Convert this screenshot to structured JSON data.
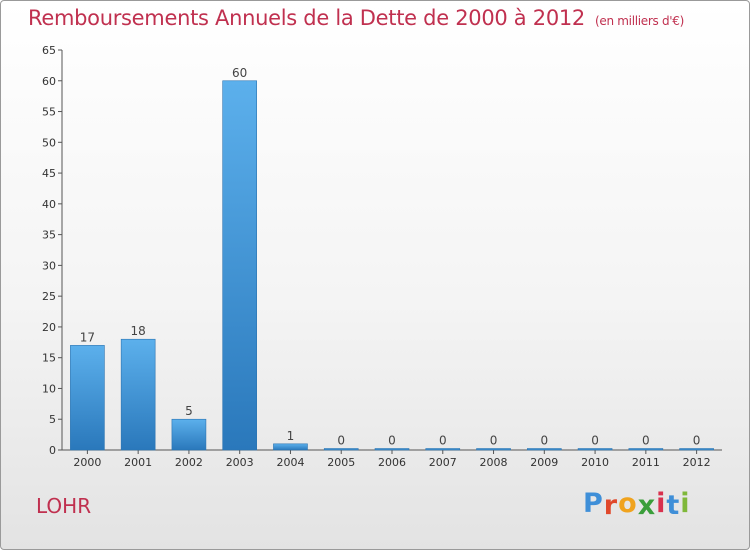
{
  "chart_data": {
    "type": "bar",
    "title": "Remboursements Annuels de la Dette de 2000 à 2012",
    "subtitle": "(en milliers d'€)",
    "categories": [
      "2000",
      "2001",
      "2002",
      "2003",
      "2004",
      "2005",
      "2006",
      "2007",
      "2008",
      "2009",
      "2010",
      "2011",
      "2012"
    ],
    "values": [
      17,
      18,
      5,
      60,
      1,
      0,
      0,
      0,
      0,
      0,
      0,
      0,
      0
    ],
    "yticks": [
      0,
      5,
      10,
      15,
      20,
      25,
      30,
      35,
      40,
      45,
      50,
      55,
      60,
      65
    ],
    "ylim": [
      0,
      65
    ],
    "xlabel": "",
    "ylabel": "",
    "grid": false,
    "bar_color": "#4a9fe0"
  },
  "footer": {
    "commune": "LOHR",
    "logo_letters": [
      {
        "ch": "P",
        "color": "#3f8fd8"
      },
      {
        "ch": "r",
        "color": "#e0482b"
      },
      {
        "ch": "o",
        "color": "#f0a31e"
      },
      {
        "ch": "x",
        "color": "#3a9e3a"
      },
      {
        "ch": "i",
        "color": "#d9314e"
      },
      {
        "ch": "t",
        "color": "#3f8fd8"
      },
      {
        "ch": "i",
        "color": "#7fb83a"
      }
    ]
  }
}
